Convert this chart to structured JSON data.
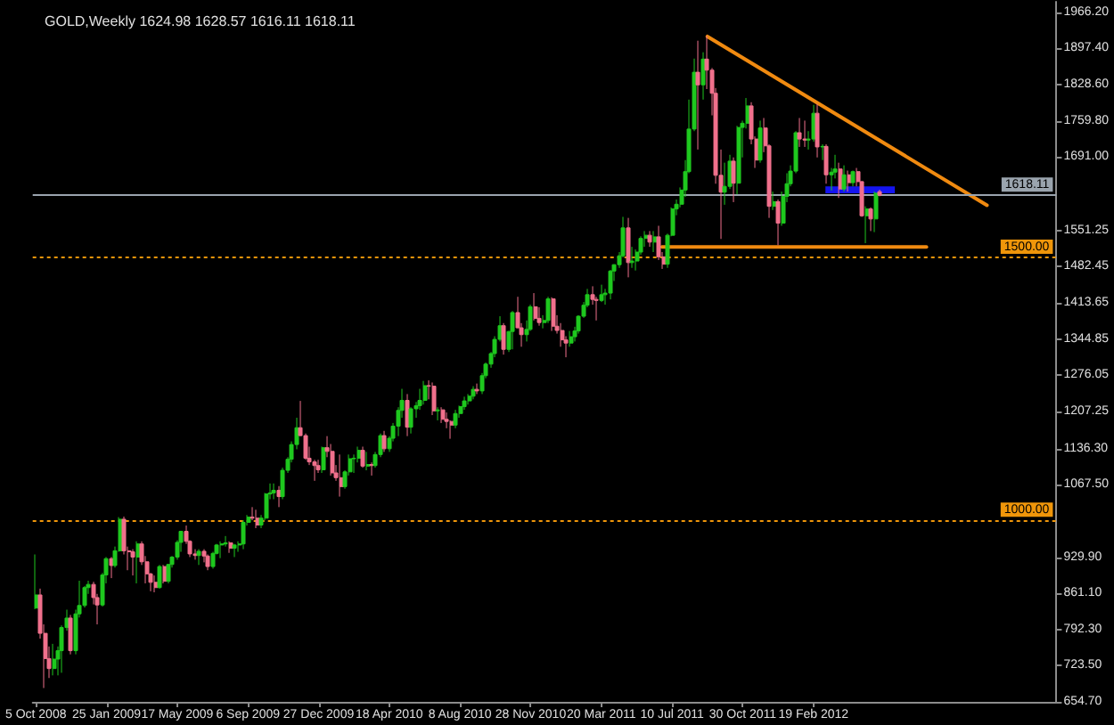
{
  "chart_data": {
    "type": "candlestick",
    "title": "GOLD,Weekly 1624.98 1628.57 1616.11 1618.11",
    "x": [
      "2008-10-05",
      "2008-10-12",
      "2008-10-19",
      "2008-10-26",
      "2008-11-02",
      "2008-11-09",
      "2008-11-16",
      "2008-11-23",
      "2008-11-30",
      "2008-12-07",
      "2008-12-14",
      "2008-12-21",
      "2008-12-28",
      "2009-01-04",
      "2009-01-11",
      "2009-01-18",
      "2009-01-25",
      "2009-02-01",
      "2009-02-08",
      "2009-02-15",
      "2009-02-22",
      "2009-03-01",
      "2009-03-08",
      "2009-03-15",
      "2009-03-22",
      "2009-03-29",
      "2009-04-05",
      "2009-04-12",
      "2009-04-19",
      "2009-04-26",
      "2009-05-03",
      "2009-05-10",
      "2009-05-17",
      "2009-05-24",
      "2009-05-31",
      "2009-06-07",
      "2009-06-14",
      "2009-06-21",
      "2009-06-28",
      "2009-07-05",
      "2009-07-12",
      "2009-07-19",
      "2009-07-26",
      "2009-08-02",
      "2009-08-09",
      "2009-08-16",
      "2009-08-23",
      "2009-08-30",
      "2009-09-06",
      "2009-09-13",
      "2009-09-20",
      "2009-09-27",
      "2009-10-04",
      "2009-10-11",
      "2009-10-18",
      "2009-10-25",
      "2009-11-01",
      "2009-11-08",
      "2009-11-15",
      "2009-11-22",
      "2009-11-29",
      "2009-12-06",
      "2009-12-13",
      "2009-12-20",
      "2009-12-27",
      "2010-01-03",
      "2010-01-10",
      "2010-01-17",
      "2010-01-24",
      "2010-01-31",
      "2010-02-07",
      "2010-02-14",
      "2010-02-21",
      "2010-02-28",
      "2010-03-07",
      "2010-03-14",
      "2010-03-21",
      "2010-03-28",
      "2010-04-04",
      "2010-04-11",
      "2010-04-18",
      "2010-04-25",
      "2010-05-02",
      "2010-05-09",
      "2010-05-16",
      "2010-05-23",
      "2010-05-30",
      "2010-06-06",
      "2010-06-13",
      "2010-06-20",
      "2010-06-27",
      "2010-07-04",
      "2010-07-11",
      "2010-07-18",
      "2010-07-25",
      "2010-08-01",
      "2010-08-08",
      "2010-08-15",
      "2010-08-22",
      "2010-08-29",
      "2010-09-05",
      "2010-09-12",
      "2010-09-19",
      "2010-09-26",
      "2010-10-03",
      "2010-10-10",
      "2010-10-17",
      "2010-10-24",
      "2010-10-31",
      "2010-11-07",
      "2010-11-14",
      "2010-11-21",
      "2010-11-28",
      "2010-12-05",
      "2010-12-12",
      "2010-12-19",
      "2010-12-26",
      "2011-01-02",
      "2011-01-09",
      "2011-01-16",
      "2011-01-23",
      "2011-01-30",
      "2011-02-06",
      "2011-02-13",
      "2011-02-20",
      "2011-02-27",
      "2011-03-06",
      "2011-03-13",
      "2011-03-20",
      "2011-03-27",
      "2011-04-03",
      "2011-04-10",
      "2011-04-17",
      "2011-04-24",
      "2011-05-01",
      "2011-05-08",
      "2011-05-15",
      "2011-05-22",
      "2011-05-29",
      "2011-06-05",
      "2011-06-12",
      "2011-06-19",
      "2011-06-26",
      "2011-07-03",
      "2011-07-10",
      "2011-07-17",
      "2011-07-24",
      "2011-07-31",
      "2011-08-07",
      "2011-08-14",
      "2011-08-21",
      "2011-08-28",
      "2011-09-04",
      "2011-09-11",
      "2011-09-18",
      "2011-09-25",
      "2011-10-02",
      "2011-10-09",
      "2011-10-16",
      "2011-10-23",
      "2011-10-30",
      "2011-11-06",
      "2011-11-13",
      "2011-11-20",
      "2011-11-27",
      "2011-12-04",
      "2011-12-11",
      "2011-12-18",
      "2011-12-25",
      "2012-01-01",
      "2012-01-08",
      "2012-01-15",
      "2012-01-22",
      "2012-01-29",
      "2012-02-05",
      "2012-02-12",
      "2012-02-19",
      "2012-02-26",
      "2012-03-04",
      "2012-03-11",
      "2012-03-18",
      "2012-03-25",
      "2012-04-01",
      "2012-04-08",
      "2012-04-15",
      "2012-04-22",
      "2012-04-29",
      "2012-05-06",
      "2012-05-13",
      "2012-05-20",
      "2012-05-27",
      "2012-06-03"
    ],
    "ohlc": [
      [
        833,
        935,
        831,
        858
      ],
      [
        858,
        870,
        775,
        785
      ],
      [
        785,
        802,
        681,
        737
      ],
      [
        737,
        760,
        700,
        718
      ],
      [
        718,
        765,
        705,
        736
      ],
      [
        736,
        760,
        705,
        752
      ],
      [
        752,
        800,
        710,
        796
      ],
      [
        796,
        830,
        790,
        814
      ],
      [
        814,
        820,
        745,
        752
      ],
      [
        752,
        830,
        745,
        822
      ],
      [
        822,
        885,
        815,
        838
      ],
      [
        838,
        875,
        834,
        872
      ],
      [
        872,
        885,
        860,
        878
      ],
      [
        878,
        883,
        840,
        853
      ],
      [
        853,
        860,
        802,
        839
      ],
      [
        839,
        900,
        836,
        896
      ],
      [
        896,
        930,
        880,
        927
      ],
      [
        927,
        930,
        890,
        914
      ],
      [
        914,
        950,
        910,
        942
      ],
      [
        942,
        1006,
        940,
        1002
      ],
      [
        1002,
        1007,
        935,
        942
      ],
      [
        942,
        950,
        905,
        940
      ],
      [
        940,
        945,
        895,
        930
      ],
      [
        930,
        960,
        880,
        955
      ],
      [
        955,
        960,
        915,
        921
      ],
      [
        921,
        932,
        880,
        898
      ],
      [
        898,
        900,
        865,
        882
      ],
      [
        882,
        895,
        863,
        872
      ],
      [
        872,
        915,
        870,
        912
      ],
      [
        912,
        915,
        880,
        884
      ],
      [
        884,
        917,
        880,
        916
      ],
      [
        916,
        932,
        910,
        930
      ],
      [
        930,
        962,
        925,
        958
      ],
      [
        958,
        980,
        940,
        979
      ],
      [
        979,
        990,
        955,
        960
      ],
      [
        960,
        962,
        930,
        936
      ],
      [
        936,
        945,
        925,
        933
      ],
      [
        933,
        945,
        915,
        941
      ],
      [
        941,
        945,
        920,
        932
      ],
      [
        932,
        935,
        905,
        912
      ],
      [
        912,
        940,
        908,
        937
      ],
      [
        937,
        955,
        935,
        953
      ],
      [
        953,
        960,
        928,
        955
      ],
      [
        955,
        970,
        950,
        957
      ],
      [
        957,
        960,
        938,
        947
      ],
      [
        947,
        955,
        930,
        953
      ],
      [
        953,
        960,
        940,
        955
      ],
      [
        955,
        1000,
        945,
        996
      ],
      [
        996,
        1010,
        990,
        1006
      ],
      [
        1006,
        1025,
        1000,
        1004
      ],
      [
        1004,
        1020,
        985,
        991
      ],
      [
        991,
        1010,
        985,
        1004
      ],
      [
        1004,
        1052,
        1000,
        1050
      ],
      [
        1050,
        1070,
        1040,
        1052
      ],
      [
        1052,
        1070,
        1040,
        1057
      ],
      [
        1057,
        1065,
        1025,
        1045
      ],
      [
        1045,
        1100,
        1040,
        1095
      ],
      [
        1095,
        1120,
        1090,
        1116
      ],
      [
        1116,
        1150,
        1110,
        1144
      ],
      [
        1144,
        1195,
        1135,
        1176
      ],
      [
        1176,
        1227,
        1160,
        1161
      ],
      [
        1161,
        1165,
        1115,
        1118
      ],
      [
        1118,
        1140,
        1105,
        1111
      ],
      [
        1111,
        1115,
        1075,
        1104
      ],
      [
        1104,
        1115,
        1090,
        1096
      ],
      [
        1096,
        1140,
        1090,
        1138
      ],
      [
        1138,
        1160,
        1120,
        1131
      ],
      [
        1131,
        1145,
        1085,
        1090
      ],
      [
        1090,
        1105,
        1075,
        1081
      ],
      [
        1081,
        1125,
        1045,
        1064
      ],
      [
        1064,
        1095,
        1060,
        1092
      ],
      [
        1092,
        1125,
        1085,
        1117
      ],
      [
        1117,
        1125,
        1090,
        1118
      ],
      [
        1118,
        1140,
        1110,
        1133
      ],
      [
        1133,
        1140,
        1100,
        1103
      ],
      [
        1103,
        1130,
        1095,
        1106
      ],
      [
        1106,
        1110,
        1085,
        1104
      ],
      [
        1104,
        1130,
        1100,
        1125
      ],
      [
        1125,
        1165,
        1120,
        1161
      ],
      [
        1161,
        1170,
        1130,
        1136
      ],
      [
        1136,
        1160,
        1130,
        1156
      ],
      [
        1156,
        1185,
        1150,
        1179
      ],
      [
        1179,
        1215,
        1160,
        1209
      ],
      [
        1209,
        1250,
        1195,
        1228
      ],
      [
        1228,
        1240,
        1160,
        1177
      ],
      [
        1177,
        1215,
        1165,
        1212
      ],
      [
        1212,
        1225,
        1195,
        1218
      ],
      [
        1218,
        1250,
        1210,
        1228
      ],
      [
        1228,
        1265,
        1220,
        1256
      ],
      [
        1256,
        1266,
        1230,
        1255
      ],
      [
        1255,
        1262,
        1200,
        1208
      ],
      [
        1208,
        1215,
        1190,
        1210
      ],
      [
        1210,
        1215,
        1185,
        1192
      ],
      [
        1192,
        1205,
        1175,
        1188
      ],
      [
        1188,
        1190,
        1155,
        1181
      ],
      [
        1181,
        1210,
        1175,
        1203
      ],
      [
        1203,
        1218,
        1195,
        1216
      ],
      [
        1216,
        1235,
        1210,
        1227
      ],
      [
        1227,
        1240,
        1220,
        1236
      ],
      [
        1236,
        1255,
        1230,
        1249
      ],
      [
        1249,
        1260,
        1240,
        1246
      ],
      [
        1246,
        1280,
        1240,
        1275
      ],
      [
        1275,
        1300,
        1270,
        1297
      ],
      [
        1297,
        1320,
        1290,
        1317
      ],
      [
        1317,
        1350,
        1310,
        1344
      ],
      [
        1344,
        1388,
        1340,
        1370
      ],
      [
        1370,
        1375,
        1315,
        1325
      ],
      [
        1325,
        1360,
        1320,
        1359
      ],
      [
        1359,
        1398,
        1325,
        1395
      ],
      [
        1395,
        1425,
        1365,
        1366
      ],
      [
        1366,
        1375,
        1330,
        1353
      ],
      [
        1353,
        1380,
        1340,
        1363
      ],
      [
        1363,
        1410,
        1360,
        1406
      ],
      [
        1406,
        1432,
        1380,
        1384
      ],
      [
        1384,
        1405,
        1370,
        1376
      ],
      [
        1376,
        1390,
        1365,
        1380
      ],
      [
        1380,
        1425,
        1375,
        1421
      ],
      [
        1421,
        1424,
        1360,
        1369
      ],
      [
        1369,
        1390,
        1355,
        1361
      ],
      [
        1361,
        1375,
        1330,
        1343
      ],
      [
        1343,
        1350,
        1310,
        1337
      ],
      [
        1337,
        1360,
        1330,
        1349
      ],
      [
        1349,
        1368,
        1340,
        1360
      ],
      [
        1360,
        1390,
        1355,
        1388
      ],
      [
        1388,
        1415,
        1385,
        1409
      ],
      [
        1409,
        1440,
        1405,
        1429
      ],
      [
        1429,
        1445,
        1410,
        1420
      ],
      [
        1420,
        1425,
        1380,
        1418
      ],
      [
        1418,
        1448,
        1415,
        1429
      ],
      [
        1429,
        1440,
        1410,
        1432
      ],
      [
        1432,
        1476,
        1420,
        1474
      ],
      [
        1474,
        1487,
        1455,
        1486
      ],
      [
        1486,
        1510,
        1480,
        1503
      ],
      [
        1503,
        1577,
        1500,
        1556
      ],
      [
        1556,
        1575,
        1462,
        1490
      ],
      [
        1490,
        1520,
        1480,
        1493
      ],
      [
        1493,
        1515,
        1475,
        1510
      ],
      [
        1510,
        1540,
        1505,
        1536
      ],
      [
        1536,
        1550,
        1520,
        1542
      ],
      [
        1542,
        1550,
        1520,
        1529
      ],
      [
        1529,
        1550,
        1510,
        1539
      ],
      [
        1539,
        1560,
        1495,
        1501
      ],
      [
        1501,
        1510,
        1478,
        1487
      ],
      [
        1487,
        1545,
        1480,
        1542
      ],
      [
        1542,
        1595,
        1540,
        1592
      ],
      [
        1592,
        1610,
        1580,
        1601
      ],
      [
        1601,
        1633,
        1595,
        1628
      ],
      [
        1628,
        1685,
        1615,
        1663
      ],
      [
        1663,
        1800,
        1660,
        1744
      ],
      [
        1744,
        1878,
        1740,
        1852
      ],
      [
        1852,
        1912,
        1705,
        1828
      ],
      [
        1828,
        1890,
        1800,
        1877
      ],
      [
        1877,
        1921,
        1820,
        1856
      ],
      [
        1856,
        1860,
        1770,
        1812
      ],
      [
        1812,
        1822,
        1640,
        1656
      ],
      [
        1656,
        1705,
        1535,
        1624
      ],
      [
        1624,
        1680,
        1600,
        1635
      ],
      [
        1635,
        1695,
        1630,
        1683
      ],
      [
        1683,
        1690,
        1605,
        1641
      ],
      [
        1641,
        1750,
        1620,
        1747
      ],
      [
        1747,
        1760,
        1690,
        1755
      ],
      [
        1755,
        1803,
        1745,
        1788
      ],
      [
        1788,
        1795,
        1715,
        1725
      ],
      [
        1725,
        1730,
        1670,
        1685
      ],
      [
        1685,
        1760,
        1680,
        1746
      ],
      [
        1746,
        1765,
        1700,
        1712
      ],
      [
        1712,
        1715,
        1575,
        1597
      ],
      [
        1597,
        1625,
        1590,
        1606
      ],
      [
        1606,
        1610,
        1523,
        1565
      ],
      [
        1565,
        1625,
        1560,
        1616
      ],
      [
        1616,
        1660,
        1605,
        1640
      ],
      [
        1640,
        1675,
        1635,
        1664
      ],
      [
        1664,
        1740,
        1660,
        1737
      ],
      [
        1737,
        1765,
        1710,
        1725
      ],
      [
        1725,
        1760,
        1710,
        1723
      ],
      [
        1723,
        1740,
        1705,
        1725
      ],
      [
        1725,
        1790,
        1720,
        1774
      ],
      [
        1774,
        1792,
        1690,
        1710
      ],
      [
        1710,
        1715,
        1685,
        1711
      ],
      [
        1711,
        1715,
        1640,
        1657
      ],
      [
        1657,
        1670,
        1627,
        1662
      ],
      [
        1662,
        1695,
        1650,
        1668
      ],
      [
        1668,
        1680,
        1613,
        1630
      ],
      [
        1630,
        1675,
        1625,
        1657
      ],
      [
        1657,
        1665,
        1625,
        1642
      ],
      [
        1642,
        1665,
        1635,
        1663
      ],
      [
        1663,
        1670,
        1635,
        1644
      ],
      [
        1644,
        1645,
        1577,
        1579
      ],
      [
        1579,
        1597,
        1527,
        1592
      ],
      [
        1592,
        1595,
        1550,
        1573
      ],
      [
        1573,
        1625,
        1548,
        1622
      ],
      [
        1624.98,
        1628.57,
        1616.11,
        1618.11
      ]
    ],
    "colors": [
      "#1ec81e",
      "#f0708c",
      "#f0708c",
      "#f0708c",
      "#1ec81e",
      "#1ec81e",
      "#1ec81e",
      "#1ec81e",
      "#f0708c",
      "#1ec81e",
      "#1ec81e",
      "#1ec81e",
      "#1ec81e",
      "#f0708c",
      "#f0708c",
      "#1ec81e",
      "#1ec81e",
      "#f0708c",
      "#1ec81e",
      "#1ec81e",
      "#f0708c",
      "#f0708c",
      "#f0708c",
      "#1ec81e",
      "#f0708c",
      "#f0708c",
      "#f0708c",
      "#f0708c",
      "#1ec81e",
      "#f0708c",
      "#1ec81e",
      "#1ec81e",
      "#1ec81e",
      "#1ec81e",
      "#f0708c",
      "#f0708c",
      "#f0708c",
      "#1ec81e",
      "#f0708c",
      "#f0708c",
      "#1ec81e",
      "#1ec81e",
      "#1ec81e",
      "#1ec81e",
      "#f0708c",
      "#1ec81e",
      "#1ec81e",
      "#1ec81e",
      "#1ec81e",
      "#f0708c",
      "#f0708c",
      "#1ec81e",
      "#1ec81e",
      "#1ec81e",
      "#1ec81e",
      "#f0708c",
      "#1ec81e",
      "#1ec81e",
      "#1ec81e",
      "#1ec81e",
      "#f0708c",
      "#f0708c",
      "#f0708c",
      "#f0708c",
      "#f0708c",
      "#1ec81e",
      "#f0708c",
      "#f0708c",
      "#f0708c",
      "#f0708c",
      "#1ec81e",
      "#1ec81e",
      "#1ec81e",
      "#1ec81e",
      "#f0708c",
      "#1ec81e",
      "#f0708c",
      "#1ec81e",
      "#1ec81e",
      "#f0708c",
      "#1ec81e",
      "#1ec81e",
      "#1ec81e",
      "#1ec81e",
      "#f0708c",
      "#1ec81e",
      "#1ec81e",
      "#1ec81e",
      "#1ec81e",
      "#f0708c",
      "#f0708c",
      "#1ec81e",
      "#f0708c",
      "#f0708c",
      "#f0708c",
      "#1ec81e",
      "#1ec81e",
      "#1ec81e",
      "#1ec81e",
      "#1ec81e",
      "#f0708c",
      "#1ec81e",
      "#1ec81e",
      "#1ec81e",
      "#1ec81e",
      "#1ec81e",
      "#f0708c",
      "#1ec81e",
      "#1ec81e",
      "#f0708c",
      "#f0708c",
      "#1ec81e",
      "#1ec81e",
      "#f0708c",
      "#f0708c",
      "#1ec81e",
      "#1ec81e",
      "#f0708c",
      "#f0708c",
      "#f0708c",
      "#f0708c",
      "#1ec81e",
      "#1ec81e",
      "#1ec81e",
      "#1ec81e",
      "#1ec81e",
      "#f0708c",
      "#f0708c",
      "#1ec81e",
      "#1ec81e",
      "#1ec81e",
      "#1ec81e",
      "#1ec81e",
      "#1ec81e",
      "#f0708c",
      "#1ec81e",
      "#1ec81e",
      "#1ec81e",
      "#1ec81e",
      "#f0708c",
      "#1ec81e",
      "#f0708c",
      "#f0708c",
      "#1ec81e",
      "#1ec81e",
      "#1ec81e",
      "#1ec81e",
      "#1ec81e",
      "#1ec81e",
      "#1ec81e",
      "#f0708c",
      "#1ec81e",
      "#f0708c",
      "#f0708c",
      "#f0708c",
      "#f0708c",
      "#1ec81e",
      "#1ec81e",
      "#f0708c",
      "#1ec81e",
      "#1ec81e",
      "#1ec81e",
      "#f0708c",
      "#f0708c",
      "#1ec81e",
      "#f0708c",
      "#f0708c",
      "#1ec81e",
      "#f0708c",
      "#1ec81e",
      "#1ec81e",
      "#1ec81e",
      "#1ec81e",
      "#f0708c",
      "#f0708c",
      "#1ec81e",
      "#1ec81e",
      "#f0708c",
      "#1ec81e",
      "#f0708c",
      "#1ec81e",
      "#1ec81e",
      "#f0708c",
      "#1ec81e",
      "#f0708c",
      "#1ec81e",
      "#f0708c",
      "#f0708c",
      "#1ec81e",
      "#f0708c",
      "#1ec81e",
      "#f0708c"
    ],
    "xlim": [
      "2008-09-30",
      "2013-03-10"
    ],
    "xticks": [
      {
        "value": "2008-10-05",
        "label": "5 Oct 2008"
      },
      {
        "value": "2009-01-25",
        "label": "25 Jan 2009"
      },
      {
        "value": "2009-05-17",
        "label": "17 May 2009"
      },
      {
        "value": "2009-09-06",
        "label": "6 Sep 2009"
      },
      {
        "value": "2009-12-27",
        "label": "27 Dec 2009"
      },
      {
        "value": "2010-04-18",
        "label": "18 Apr 2010"
      },
      {
        "value": "2010-08-08",
        "label": "8 Aug 2010"
      },
      {
        "value": "2010-11-28",
        "label": "28 Nov 2010"
      },
      {
        "value": "2011-03-20",
        "label": "20 Mar 2011"
      },
      {
        "value": "2011-07-10",
        "label": "10 Jul 2011"
      },
      {
        "value": "2011-10-30",
        "label": "30 Oct 2011"
      },
      {
        "value": "2012-02-19",
        "label": "19 Feb 2012"
      }
    ],
    "ylim": [
      654.7,
      1986
    ],
    "yticks": [
      {
        "value": 654.7,
        "label": "654.70"
      },
      {
        "value": 723.5,
        "label": "723.50"
      },
      {
        "value": 792.3,
        "label": "792.30"
      },
      {
        "value": 861.1,
        "label": "861.10"
      },
      {
        "value": 929.9,
        "label": "929.90"
      },
      {
        "value": 1067.5,
        "label": "1067.50"
      },
      {
        "value": 1136.3,
        "label": "1136.30"
      },
      1207.25,
      1276.05,
      1344.85,
      1413.65,
      1482.45,
      1551.25,
      {
        "value": 1691,
        "label": "1691.00"
      },
      {
        "value": 1759.8,
        "label": "1759.80"
      },
      {
        "value": 1828.6,
        "label": "1828.60"
      },
      {
        "value": 1897.4,
        "label": "1897.40"
      },
      {
        "value": 1966.2,
        "label": "1966.20"
      }
    ],
    "ref_lines": [
      {
        "axis": "y",
        "value": 1618.11,
        "label": "1618.11",
        "color": "#9aa4ae"
      },
      {
        "axis": "y",
        "value": 1500,
        "label": "1500.00",
        "color": "#f0960a",
        "line_style": "dotted"
      },
      {
        "axis": "y",
        "value": 1000,
        "label": "1000.00",
        "color": "#f0960a",
        "line_style": "dotted"
      }
    ],
    "series": [
      {
        "type": "line",
        "x": [
          "2011-09-04",
          "2012-11-20"
        ],
        "values": [
          1920,
          1599
        ],
        "color": "#f08a10"
      },
      {
        "type": "line",
        "x": [
          "2011-06-24",
          "2012-08-16"
        ],
        "values": [
          1520,
          1520
        ],
        "color": "#f08a10"
      },
      {
        "type": "line",
        "x": [
          "2012-03-09",
          "2012-06-27"
        ],
        "values": [
          null,
          null
        ],
        "lower": [
          1622,
          1622
        ],
        "upper": [
          1635,
          1635
        ],
        "color": "#1414f0"
      }
    ]
  }
}
